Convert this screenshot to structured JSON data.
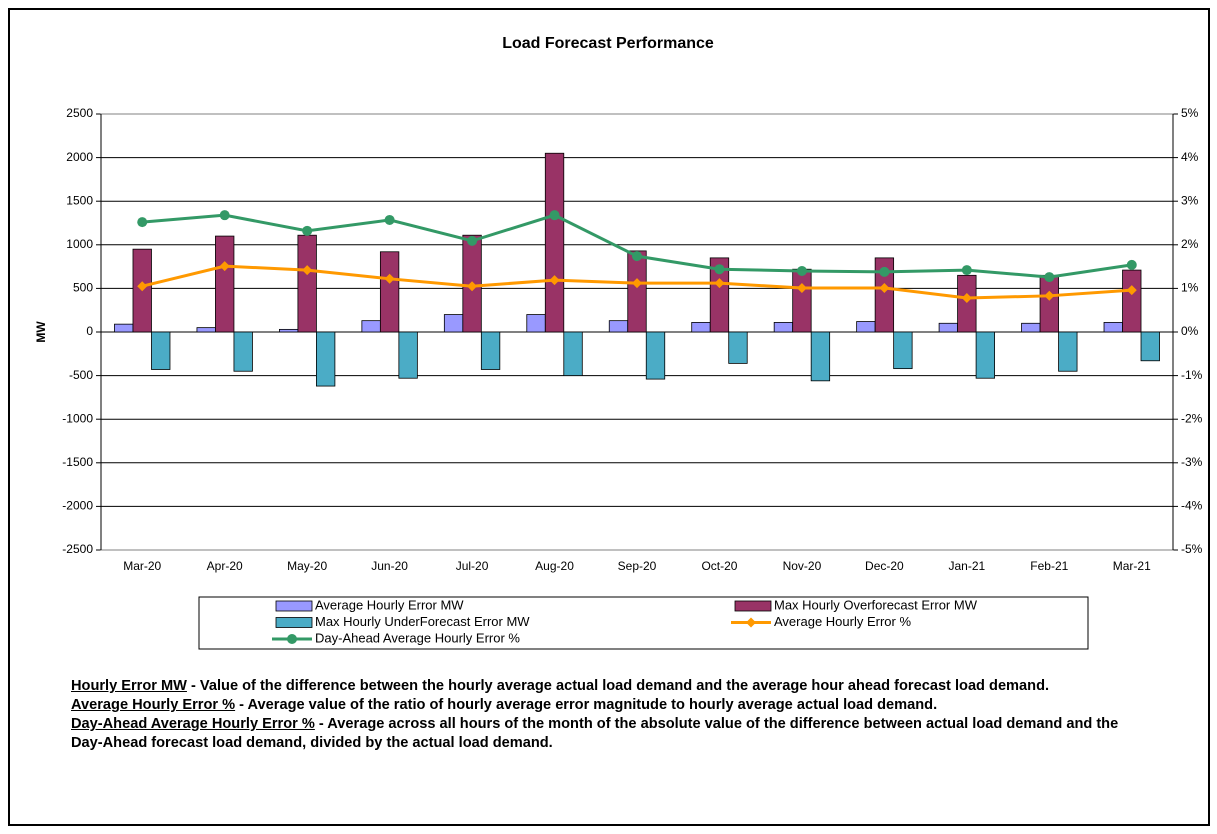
{
  "chart_data": {
    "type": "bar_line",
    "title": "Load Forecast Performance",
    "ylabel": "MW",
    "categories": [
      "Mar-20",
      "Apr-20",
      "May-20",
      "Jun-20",
      "Jul-20",
      "Aug-20",
      "Sep-20",
      "Oct-20",
      "Nov-20",
      "Dec-20",
      "Jan-21",
      "Feb-21",
      "Mar-21"
    ],
    "ylim": [
      -2500,
      2500
    ],
    "yticks": [
      -2500,
      -2000,
      -1500,
      -1000,
      -500,
      0,
      500,
      1000,
      1500,
      2000,
      2500
    ],
    "y2lim": [
      -5,
      5
    ],
    "y2ticks": [
      {
        "value": -5,
        "label": "-5%"
      },
      {
        "value": -4,
        "label": "-4%"
      },
      {
        "value": -3,
        "label": "-3%"
      },
      {
        "value": -2,
        "label": "-2%"
      },
      {
        "value": -1,
        "label": "-1%"
      },
      {
        "value": 0,
        "label": "0%"
      },
      {
        "value": 1,
        "label": "1%"
      },
      {
        "value": 2,
        "label": "2%"
      },
      {
        "value": 3,
        "label": "3%"
      },
      {
        "value": 4,
        "label": "4%"
      },
      {
        "value": 5,
        "label": "5%"
      }
    ],
    "grid": true,
    "series": [
      {
        "name": "Average Hourly Error MW",
        "type": "bar",
        "color": "#9999ff",
        "values": [
          90,
          50,
          30,
          130,
          200,
          200,
          130,
          110,
          110,
          120,
          100,
          100,
          110
        ]
      },
      {
        "name": "Max Hourly Overforecast Error MW",
        "type": "bar",
        "color": "#993366",
        "values": [
          950,
          1100,
          1110,
          920,
          1110,
          2050,
          930,
          850,
          720,
          850,
          650,
          650,
          710
        ]
      },
      {
        "name": "Max Hourly UnderForecast Error MW",
        "type": "bar",
        "color": "#4bacc6",
        "values": [
          -430,
          -450,
          -620,
          -530,
          -430,
          -500,
          -540,
          -360,
          -560,
          -420,
          -530,
          -450,
          -330
        ]
      },
      {
        "name": "Average Hourly Error %",
        "type": "line",
        "axis": "y2",
        "marker": "diamond",
        "color": "#ff9900",
        "values": [
          1.05,
          1.51,
          1.42,
          1.22,
          1.05,
          1.19,
          1.12,
          1.12,
          1.01,
          1.01,
          0.78,
          0.83,
          0.96
        ]
      },
      {
        "name": "Day-Ahead Average Hourly Error %",
        "type": "line",
        "axis": "y2",
        "marker": "circle",
        "color": "#339966",
        "values": [
          2.52,
          2.68,
          2.32,
          2.57,
          2.09,
          2.68,
          1.74,
          1.44,
          1.4,
          1.38,
          1.42,
          1.26,
          1.54
        ]
      }
    ]
  },
  "notes": [
    {
      "term": "Hourly Error MW",
      "text": "- Value of the difference between the hourly average actual load demand and the average hour ahead forecast load demand."
    },
    {
      "term": "Average Hourly Error %",
      "text": "- Average value of the ratio of hourly average error magnitude to hourly average actual load demand."
    },
    {
      "term": "Day-Ahead Average Hourly Error %",
      "text": "- Average across all hours of the month of the absolute value of the difference between actual load demand and the Day-Ahead forecast load demand, divided by the actual load demand."
    }
  ]
}
